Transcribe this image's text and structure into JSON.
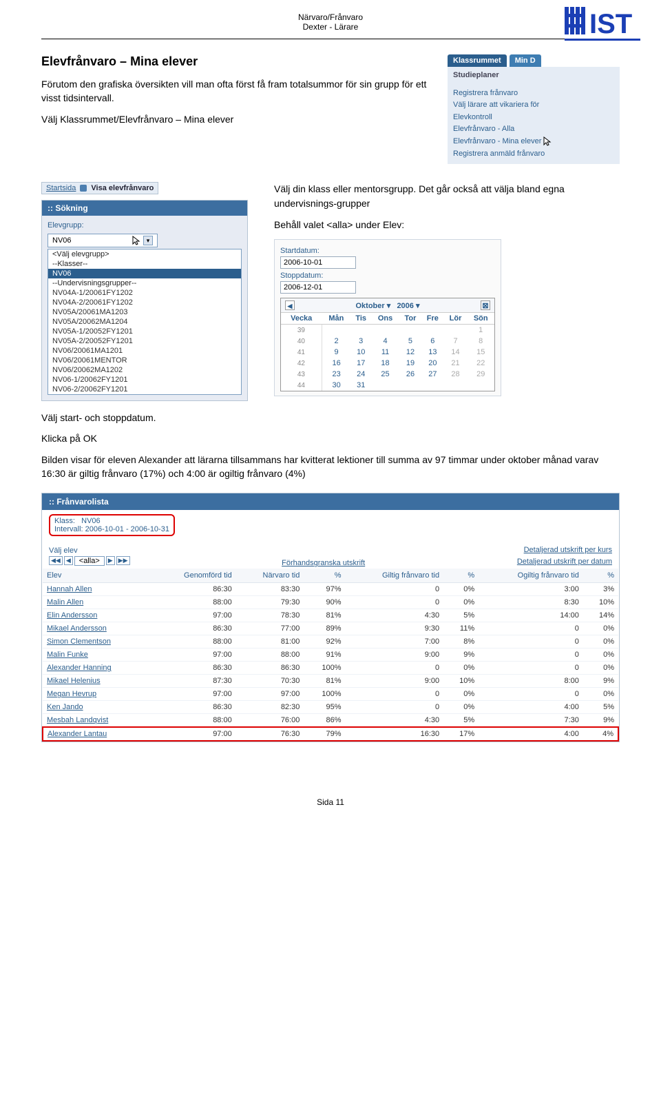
{
  "doc_header": {
    "line1": "Närvaro/Frånvaro",
    "line2": "Dexter - Lärare"
  },
  "logo_text": "IST",
  "heading": "Elevfrånvaro – Mina elever",
  "intro1": "Förutom den grafiska översikten vill man ofta först få fram totalsummor för sin grupp för ett visst tidsintervall.",
  "intro2": "Välj Klassrummet/Elevfrånvaro – Mina elever",
  "nav": {
    "tab1": "Klassrummet",
    "tab2": "Min D",
    "header": "Studieplaner",
    "items": [
      "Registrera frånvaro",
      "Välj lärare att vikariera för",
      "Elevkontroll",
      "Elevfrånvaro - Alla",
      "Elevfrånvaro - Mina elever",
      "Registrera anmäld frånvaro"
    ]
  },
  "breadcrumb": {
    "a": "Startsida",
    "b": "Visa elevfrånvaro"
  },
  "sok": {
    "title": ":: Sökning",
    "label": "Elevgrupp:",
    "value": "NV06",
    "options": [
      "<Välj elevgrupp>",
      "--Klasser--",
      "NV06",
      "--Undervisningsgrupper--",
      "NV04A-1/20061FY1202",
      "NV04A-2/20061FY1202",
      "NV05A/20061MA1203",
      "NV05A/20062MA1204",
      "NV05A-1/20052FY1201",
      "NV05A-2/20052FY1201",
      "NV06/20061MA1201",
      "NV06/20061MENTOR",
      "NV06/20062MA1202",
      "NV06-1/20062FY1201",
      "NV06-2/20062FY1201"
    ],
    "selected_index": 2
  },
  "r_text1": "Välj din klass eller mentorsgrupp. Det går också att välja bland egna undervisnings-grupper",
  "r_text2": "Behåll valet <alla> under Elev:",
  "date_shot": {
    "start_label": "Startdatum:",
    "start_value": "2006-10-01",
    "stop_label": "Stoppdatum:",
    "stop_value": "2006-12-01"
  },
  "cal": {
    "month": "Oktober",
    "year": "2006",
    "dow": [
      "Vecka",
      "Mån",
      "Tis",
      "Ons",
      "Tor",
      "Fre",
      "Lör",
      "Sön"
    ],
    "rows": [
      [
        "39",
        "",
        "",
        "",
        "",
        "",
        "",
        "1"
      ],
      [
        "40",
        "2",
        "3",
        "4",
        "5",
        "6",
        "7",
        "8"
      ],
      [
        "41",
        "9",
        "10",
        "11",
        "12",
        "13",
        "14",
        "15"
      ],
      [
        "42",
        "16",
        "17",
        "18",
        "19",
        "20",
        "21",
        "22"
      ],
      [
        "43",
        "23",
        "24",
        "25",
        "26",
        "27",
        "28",
        "29"
      ],
      [
        "44",
        "30",
        "31",
        "",
        "",
        "",
        "",
        ""
      ]
    ]
  },
  "below1": "Välj start- och stoppdatum.",
  "below2": "Klicka på OK",
  "below3": "Bilden visar för eleven Alexander att lärarna tillsammans har kvitterat lektioner till summa av 97 timmar under oktober månad varav 16:30 är giltig frånvaro (17%) och 4:00 är ogiltig frånvaro (4%)",
  "fl": {
    "title": ":: Frånvarolista",
    "klass_label": "Klass:",
    "klass_value": "NV06",
    "intervall_label": "Intervall:",
    "intervall_value": "2006-10-01 - 2006-10-31",
    "valj_elev": "Välj elev",
    "alla": "<alla>",
    "center_link": "Förhandsgranska utskrift",
    "right_link1": "Detaljerad utskrift per kurs",
    "right_link2": "Detaljerad utskrift per datum",
    "cols": [
      "Elev",
      "Genomförd tid",
      "Närvaro tid",
      "%",
      "Giltig frånvaro tid",
      "%",
      "Ogiltig frånvaro tid",
      "%"
    ],
    "rows": [
      [
        "Hannah Allen",
        "86:30",
        "83:30",
        "97%",
        "0",
        "0%",
        "3:00",
        "3%"
      ],
      [
        "Malin Allen",
        "88:00",
        "79:30",
        "90%",
        "0",
        "0%",
        "8:30",
        "10%"
      ],
      [
        "Elin Andersson",
        "97:00",
        "78:30",
        "81%",
        "4:30",
        "5%",
        "14:00",
        "14%"
      ],
      [
        "Mikael Andersson",
        "86:30",
        "77:00",
        "89%",
        "9:30",
        "11%",
        "0",
        "0%"
      ],
      [
        "Simon Clementson",
        "88:00",
        "81:00",
        "92%",
        "7:00",
        "8%",
        "0",
        "0%"
      ],
      [
        "Malin Funke",
        "97:00",
        "88:00",
        "91%",
        "9:00",
        "9%",
        "0",
        "0%"
      ],
      [
        "Alexander Hanning",
        "86:30",
        "86:30",
        "100%",
        "0",
        "0%",
        "0",
        "0%"
      ],
      [
        "Mikael Helenius",
        "87:30",
        "70:30",
        "81%",
        "9:00",
        "10%",
        "8:00",
        "9%"
      ],
      [
        "Megan Hevrup",
        "97:00",
        "97:00",
        "100%",
        "0",
        "0%",
        "0",
        "0%"
      ],
      [
        "Ken Jando",
        "86:30",
        "82:30",
        "95%",
        "0",
        "0%",
        "4:00",
        "5%"
      ],
      [
        "Mesbah Landqvist",
        "88:00",
        "76:00",
        "86%",
        "4:30",
        "5%",
        "7:30",
        "9%"
      ],
      [
        "Alexander Lantau",
        "97:00",
        "76:30",
        "79%",
        "16:30",
        "17%",
        "4:00",
        "4%"
      ]
    ],
    "highlight_row": 11
  },
  "footer": "Sida 11"
}
